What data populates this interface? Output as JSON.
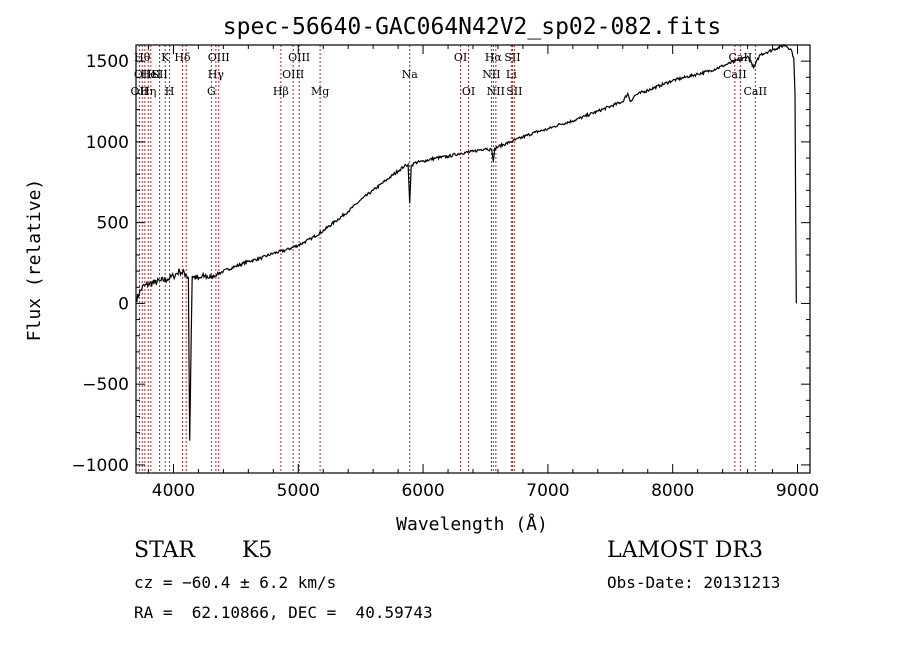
{
  "chart_data": {
    "type": "line",
    "title": "spec-56640-GAC064N42V2_sp02-082.fits",
    "xlabel": "Wavelength (Å)",
    "ylabel": "Flux (relative)",
    "xlim": [
      3700,
      9100
    ],
    "ylim": [
      -1050,
      1600
    ],
    "xticks": [
      4000,
      5000,
      6000,
      7000,
      8000,
      9000
    ],
    "xtick_labels": [
      "4000",
      "5000",
      "6000",
      "7000",
      "8000",
      "9000"
    ],
    "yticks": [
      -1000,
      -500,
      0,
      500,
      1000,
      1500
    ],
    "ytick_labels": [
      "−1000",
      "−500",
      "0",
      "500",
      "1000",
      "1500"
    ],
    "grid": false,
    "series": [
      {
        "name": "spectrum",
        "color": "#000000",
        "x": [
          3700,
          3750,
          3800,
          3850,
          3900,
          3950,
          4000,
          4050,
          4100,
          4120,
          4130,
          4150,
          4200,
          4250,
          4300,
          4350,
          4400,
          4500,
          4600,
          4700,
          4800,
          4900,
          5000,
          5050,
          5100,
          5200,
          5300,
          5400,
          5500,
          5600,
          5700,
          5800,
          5850,
          5880,
          5893,
          5905,
          5930,
          6000,
          6100,
          6200,
          6300,
          6400,
          6500,
          6550,
          6563,
          6575,
          6600,
          6700,
          6800,
          6900,
          7000,
          7100,
          7200,
          7300,
          7400,
          7500,
          7600,
          7640,
          7660,
          7700,
          7800,
          7900,
          8000,
          8100,
          8200,
          8300,
          8400,
          8500,
          8550,
          8600,
          8650,
          8700,
          8800,
          8900,
          8950,
          8970,
          8980,
          8990
        ],
        "y": [
          20,
          100,
          120,
          130,
          140,
          150,
          170,
          200,
          180,
          160,
          -850,
          170,
          150,
          170,
          160,
          180,
          200,
          230,
          260,
          280,
          310,
          330,
          360,
          380,
          400,
          450,
          510,
          570,
          640,
          700,
          760,
          820,
          850,
          860,
          620,
          850,
          870,
          880,
          900,
          910,
          930,
          940,
          960,
          950,
          880,
          960,
          970,
          1000,
          1030,
          1060,
          1080,
          1110,
          1130,
          1160,
          1190,
          1220,
          1250,
          1300,
          1250,
          1290,
          1320,
          1350,
          1380,
          1400,
          1420,
          1440,
          1470,
          1500,
          1510,
          1530,
          1460,
          1540,
          1570,
          1600,
          1570,
          1520,
          1300,
          0
        ]
      }
    ],
    "lines": [
      {
        "x": 3727,
        "labels": [
          {
            "text": "OII",
            "row": 2
          }
        ]
      },
      {
        "x": 3750,
        "labels": [
          {
            "text": "Hθ",
            "row": 0
          }
        ]
      },
      {
        "x": 3771,
        "labels": [
          {
            "text": "OIII",
            "row": 1
          }
        ]
      },
      {
        "x": 3798,
        "labels": [
          {
            "text": "Hη",
            "row": 2
          }
        ]
      },
      {
        "x": 3819,
        "labels": [
          {
            "text": "HeI",
            "row": 1
          }
        ]
      },
      {
        "x": 3889,
        "labels": [
          {
            "text": "SII",
            "row": 1
          }
        ]
      },
      {
        "x": 3934,
        "labels": [
          {
            "text": "K",
            "row": 0
          }
        ]
      },
      {
        "x": 3969,
        "labels": [
          {
            "text": "H",
            "row": 2
          }
        ]
      },
      {
        "x": 4072,
        "labels": [
          {
            "text": "Hδ",
            "row": 0
          }
        ]
      },
      {
        "x": 4102,
        "labels": []
      },
      {
        "x": 4304,
        "labels": [
          {
            "text": "G",
            "row": 2
          }
        ]
      },
      {
        "x": 4340,
        "labels": [
          {
            "text": "Hγ",
            "row": 1
          }
        ]
      },
      {
        "x": 4363,
        "labels": [
          {
            "text": "OIII",
            "row": 0
          }
        ]
      },
      {
        "x": 4861,
        "labels": [
          {
            "text": "Hβ",
            "row": 2
          }
        ]
      },
      {
        "x": 4959,
        "labels": [
          {
            "text": "OIII",
            "row": 1
          }
        ]
      },
      {
        "x": 5007,
        "labels": [
          {
            "text": "OIII",
            "row": 0
          }
        ]
      },
      {
        "x": 5175,
        "labels": [
          {
            "text": "Mg",
            "row": 2
          }
        ]
      },
      {
        "x": 5893,
        "labels": [
          {
            "text": "Na",
            "row": 1
          }
        ]
      },
      {
        "x": 6300,
        "labels": [
          {
            "text": "OI",
            "row": 0
          }
        ]
      },
      {
        "x": 6364,
        "labels": [
          {
            "text": "OI",
            "row": 2
          }
        ]
      },
      {
        "x": 6548,
        "labels": [
          {
            "text": "NII",
            "row": 1
          }
        ]
      },
      {
        "x": 6563,
        "labels": [
          {
            "text": "Hα",
            "row": 0
          }
        ]
      },
      {
        "x": 6583,
        "labels": [
          {
            "text": "NII",
            "row": 2
          }
        ]
      },
      {
        "x": 6707,
        "labels": [
          {
            "text": "Li",
            "row": 1
          }
        ]
      },
      {
        "x": 6716,
        "labels": [
          {
            "text": "SII",
            "row": 0
          }
        ]
      },
      {
        "x": 6731,
        "labels": [
          {
            "text": "SII",
            "row": 2
          }
        ]
      },
      {
        "x": 8498,
        "labels": [
          {
            "text": "CaII",
            "row": 1
          }
        ]
      },
      {
        "x": 8542,
        "labels": [
          {
            "text": "CaII",
            "row": 0
          }
        ]
      },
      {
        "x": 8662,
        "labels": [
          {
            "text": "CaII",
            "row": 2
          }
        ]
      }
    ],
    "line_color": "#a52a2a"
  },
  "info": {
    "object_class": "STAR",
    "subclass": "K5",
    "survey": "LAMOST DR3",
    "redshift": "cz = −60.4 ± 6.2 km/s",
    "obs_date": "Obs-Date: 20131213",
    "coords": "RA =  62.10866, DEC =  40.59743"
  }
}
